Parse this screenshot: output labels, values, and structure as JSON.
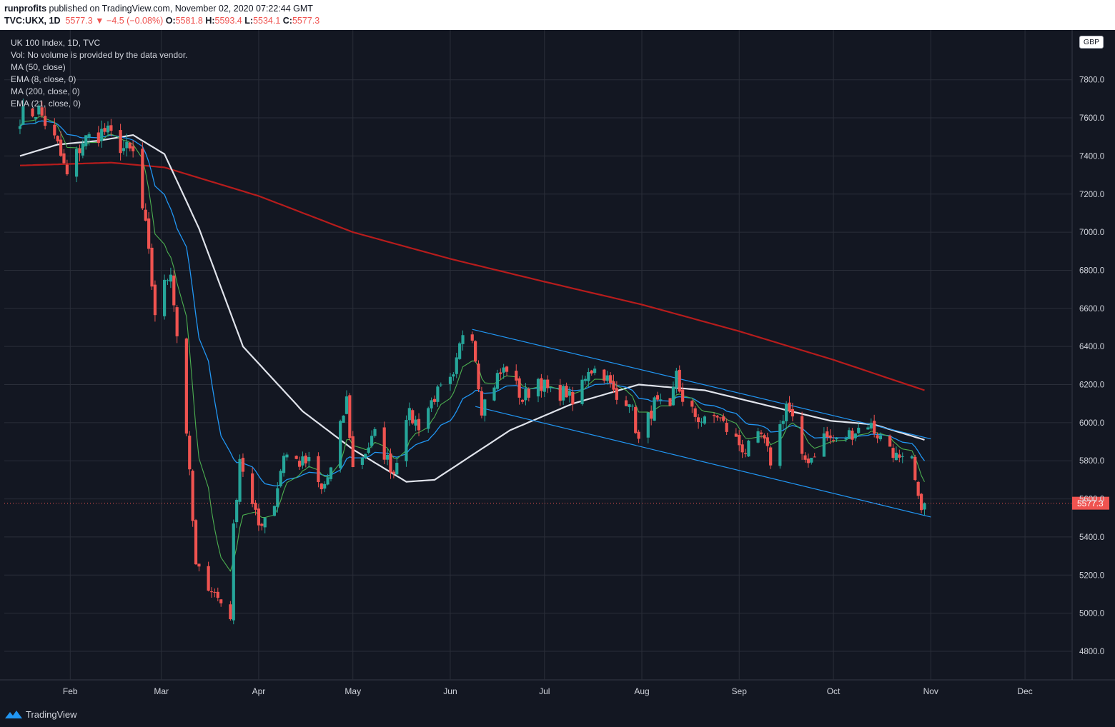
{
  "header": {
    "author": "runprofits",
    "published": " published on TradingView.com, November 02, 2020 07:22:44 GMT",
    "symbol": "TVC:UKX, 1D",
    "last": "5577.3",
    "change": "−4.5 (−0.08%)",
    "o_label": "O:",
    "o_value": "5581.8",
    "h_label": "H:",
    "h_value": "5593.4",
    "l_label": "L:",
    "l_value": "5534.1",
    "c_label": "C:",
    "c_value": "5577.3"
  },
  "legend": {
    "title": "UK 100 Index, 1D, TVC",
    "vol": "Vol: No volume is provided by the data vendor.",
    "ma50": "MA (50, close)",
    "ema8": "EMA (8, close, 0)",
    "ma200": "MA (200, close, 0)",
    "ema21": "EMA (21, close, 0)"
  },
  "currency": "GBP",
  "brand": "TradingView",
  "colors": {
    "up": "#26a69a",
    "down": "#ef5350",
    "ma50": "#e0e3eb",
    "ma200": "#b71c1c",
    "ema21": "#2196f3",
    "ema8": "#4caf50",
    "channel": "#2196f3",
    "background": "#131722"
  },
  "chart_data": {
    "type": "candlestick",
    "ylim": [
      4650,
      8050
    ],
    "y_ticks": [
      "4800.0",
      "5000.0",
      "5200.0",
      "5400.0",
      "5600.0",
      "5800.0",
      "6000.0",
      "6200.0",
      "6400.0",
      "6600.0",
      "6800.0",
      "7000.0",
      "7200.0",
      "7400.0",
      "7600.0",
      "7800.0"
    ],
    "x_ticks": [
      "Feb",
      "Mar",
      "Apr",
      "May",
      "Jun",
      "Jul",
      "Aug",
      "Sep",
      "Oct",
      "Nov",
      "Dec"
    ],
    "last_price_label": "5577.3",
    "anchors": [
      [
        "2020-01-16",
        7610
      ],
      [
        "2020-01-22",
        7640
      ],
      [
        "2020-01-28",
        7450
      ],
      [
        "2020-01-31",
        7290
      ],
      [
        "2020-02-05",
        7480
      ],
      [
        "2020-02-12",
        7530
      ],
      [
        "2020-02-18",
        7440
      ],
      [
        "2020-02-21",
        7410
      ],
      [
        "2020-02-25",
        7020
      ],
      [
        "2020-02-28",
        6580
      ],
      [
        "2020-03-04",
        6810
      ],
      [
        "2020-03-06",
        6460
      ],
      [
        "2020-03-09",
        5960
      ],
      [
        "2020-03-12",
        5240
      ],
      [
        "2020-03-16",
        5150
      ],
      [
        "2020-03-19",
        5080
      ],
      [
        "2020-03-23",
        4990
      ],
      [
        "2020-03-24",
        5440
      ],
      [
        "2020-03-26",
        5820
      ],
      [
        "2020-03-30",
        5560
      ],
      [
        "2020-04-01",
        5460
      ],
      [
        "2020-04-06",
        5580
      ],
      [
        "2020-04-09",
        5840
      ],
      [
        "2020-04-14",
        5790
      ],
      [
        "2020-04-17",
        5790
      ],
      [
        "2020-04-21",
        5640
      ],
      [
        "2020-04-24",
        5750
      ],
      [
        "2020-04-29",
        6120
      ],
      [
        "2020-05-01",
        5760
      ],
      [
        "2020-05-05",
        5850
      ],
      [
        "2020-05-08",
        5935
      ],
      [
        "2020-05-14",
        5740
      ],
      [
        "2020-05-18",
        6050
      ],
      [
        "2020-05-22",
        5990
      ],
      [
        "2020-05-27",
        6140
      ],
      [
        "2020-06-02",
        6220
      ],
      [
        "2020-06-05",
        6480
      ],
      [
        "2020-06-08",
        6475
      ],
      [
        "2020-06-11",
        6080
      ],
      [
        "2020-06-16",
        6240
      ],
      [
        "2020-06-19",
        6290
      ],
      [
        "2020-06-24",
        6120
      ],
      [
        "2020-06-29",
        6230
      ],
      [
        "2020-07-03",
        6150
      ],
      [
        "2020-07-08",
        6160
      ],
      [
        "2020-07-10",
        6090
      ],
      [
        "2020-07-15",
        6290
      ],
      [
        "2020-07-20",
        6260
      ],
      [
        "2020-07-24",
        6120
      ],
      [
        "2020-07-28",
        6130
      ],
      [
        "2020-07-31",
        5900
      ],
      [
        "2020-08-05",
        6100
      ],
      [
        "2020-08-10",
        6050
      ],
      [
        "2020-08-12",
        6280
      ],
      [
        "2020-08-14",
        6090
      ],
      [
        "2020-08-21",
        6000
      ],
      [
        "2020-08-25",
        6040
      ],
      [
        "2020-08-28",
        5965
      ],
      [
        "2020-09-03",
        5850
      ],
      [
        "2020-09-08",
        5930
      ],
      [
        "2020-09-11",
        5800
      ],
      [
        "2020-09-16",
        6100
      ],
      [
        "2020-09-18",
        6010
      ],
      [
        "2020-09-21",
        5800
      ],
      [
        "2020-09-24",
        5820
      ],
      [
        "2020-09-28",
        5930
      ],
      [
        "2020-10-02",
        5900
      ],
      [
        "2020-10-07",
        5950
      ],
      [
        "2020-10-12",
        6000
      ],
      [
        "2020-10-16",
        5920
      ],
      [
        "2020-10-19",
        5880
      ],
      [
        "2020-10-22",
        5790
      ],
      [
        "2020-10-26",
        5790
      ],
      [
        "2020-10-28",
        5580
      ],
      [
        "2020-10-30",
        5577
      ]
    ],
    "overlays": {
      "ma50": [
        [
          "2020-01-16",
          7400
        ],
        [
          "2020-01-28",
          7460
        ],
        [
          "2020-02-10",
          7480
        ],
        [
          "2020-02-21",
          7510
        ],
        [
          "2020-03-02",
          7410
        ],
        [
          "2020-03-13",
          7020
        ],
        [
          "2020-03-27",
          6400
        ],
        [
          "2020-04-15",
          6060
        ],
        [
          "2020-05-01",
          5860
        ],
        [
          "2020-05-18",
          5690
        ],
        [
          "2020-05-27",
          5700
        ],
        [
          "2020-06-08",
          5830
        ],
        [
          "2020-06-20",
          5960
        ],
        [
          "2020-07-10",
          6100
        ],
        [
          "2020-07-31",
          6200
        ],
        [
          "2020-08-21",
          6170
        ],
        [
          "2020-09-10",
          6090
        ],
        [
          "2020-09-30",
          6010
        ],
        [
          "2020-10-14",
          5990
        ],
        [
          "2020-10-30",
          5910
        ]
      ],
      "ma200": [
        [
          "2020-01-16",
          7350
        ],
        [
          "2020-02-14",
          7365
        ],
        [
          "2020-03-02",
          7340
        ],
        [
          "2020-03-16",
          7270
        ],
        [
          "2020-04-01",
          7190
        ],
        [
          "2020-05-01",
          7000
        ],
        [
          "2020-06-01",
          6860
        ],
        [
          "2020-07-01",
          6740
        ],
        [
          "2020-08-01",
          6620
        ],
        [
          "2020-09-01",
          6480
        ],
        [
          "2020-10-01",
          6330
        ],
        [
          "2020-10-30",
          6170
        ]
      ]
    },
    "channel": {
      "upper": [
        [
          "2020-06-08",
          6490
        ],
        [
          "2020-11-01",
          5915
        ]
      ],
      "lower": [
        [
          "2020-06-09",
          6085
        ],
        [
          "2020-11-01",
          5505
        ]
      ]
    }
  }
}
